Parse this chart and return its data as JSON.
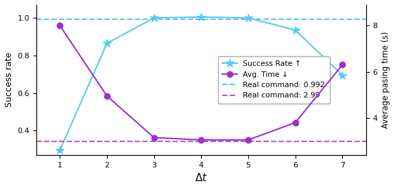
{
  "x": [
    1,
    2,
    3,
    4,
    5,
    6,
    7
  ],
  "success_rate": [
    0.295,
    0.865,
    1.0,
    1.005,
    1.0,
    0.935,
    0.695
  ],
  "avg_time_s": [
    8.0,
    4.95,
    3.15,
    3.05,
    3.05,
    3.8,
    6.3
  ],
  "real_success": 0.992,
  "real_time_s": 2.99,
  "success_color": "#5BC8F0",
  "time_color": "#9933CC",
  "real_success_color": "#55CCEE",
  "real_time_color": "#BB55DD",
  "xlabel": "$\\Delta t$",
  "ylabel_left": "Success rate",
  "ylabel_right": "Average pasing time (s)",
  "ylim_left": [
    0.27,
    1.07
  ],
  "ylim_right": [
    2.4,
    8.9
  ],
  "right_yticks": [
    4,
    6,
    8
  ],
  "left_yticks": [
    0.4,
    0.6,
    0.8,
    1.0
  ],
  "legend_success": "Success Rate ↑",
  "legend_time": "Avg. Time ↓",
  "legend_real_success": "Real command: 0.992",
  "legend_real_time": "Real command: 2.99",
  "figsize": [
    5.76,
    2.74
  ],
  "dpi": 100
}
